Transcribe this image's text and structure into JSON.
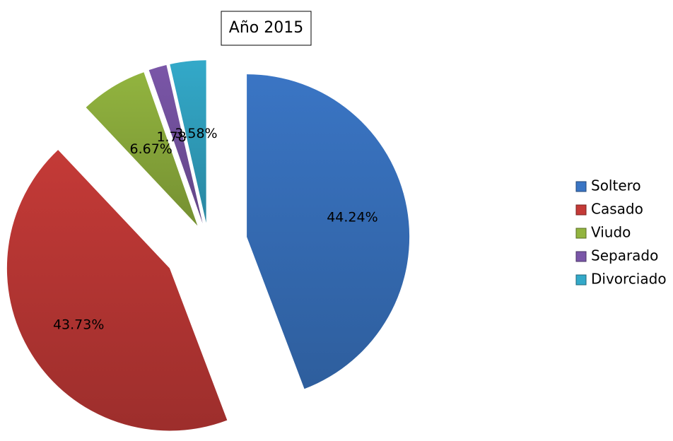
{
  "chart_data": {
    "type": "pie",
    "title": "Año 2015",
    "categories": [
      "Soltero",
      "Casado",
      "Viudo",
      "Separado",
      "Divorciado"
    ],
    "values": [
      44.24,
      43.73,
      6.67,
      1.78,
      3.58
    ],
    "value_labels": [
      "44.24%",
      "43.73%",
      "6.67%",
      "1.78%",
      "3.58%"
    ],
    "colors": [
      "#3a75c4",
      "#c43a37",
      "#92b43f",
      "#7a56a8",
      "#33a9c9"
    ],
    "legend": "right"
  }
}
